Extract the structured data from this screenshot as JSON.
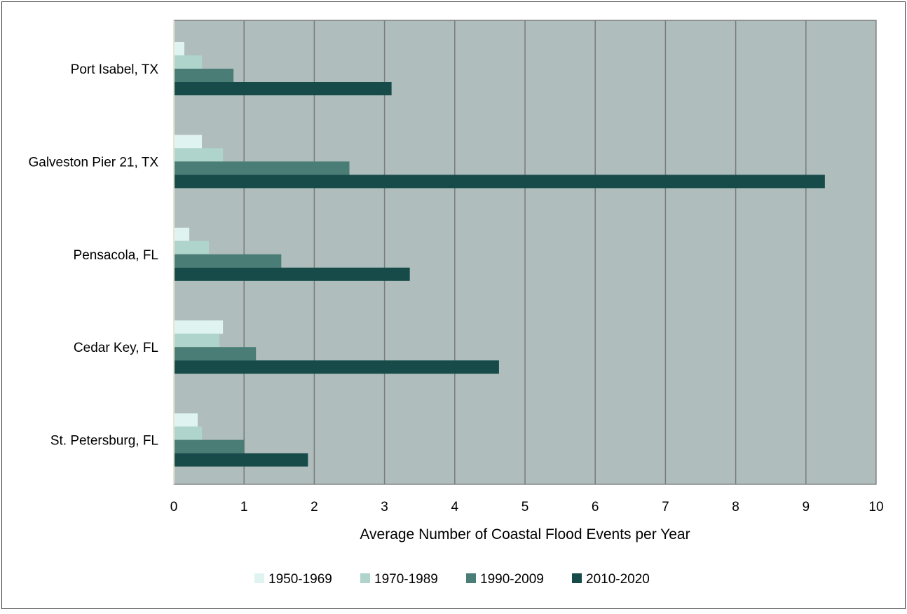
{
  "chart_data": {
    "type": "bar",
    "orientation": "horizontal",
    "categories": [
      "Port Isabel, TX",
      "Galveston Pier 21, TX",
      "Pensacola, FL",
      "Cedar Key, FL",
      "St. Petersburg, FL"
    ],
    "series": [
      {
        "name": "1950-1969",
        "color": "#dff3f0",
        "values": [
          0.15,
          0.4,
          0.22,
          0.7,
          0.34
        ]
      },
      {
        "name": "1970-1989",
        "color": "#aed4cc",
        "values": [
          0.4,
          0.7,
          0.5,
          0.65,
          0.4
        ]
      },
      {
        "name": "1990-2009",
        "color": "#4a7d76",
        "values": [
          0.85,
          2.5,
          1.53,
          1.17,
          1.0
        ]
      },
      {
        "name": "2010-2020",
        "color": "#164b49",
        "values": [
          3.1,
          9.27,
          3.36,
          4.63,
          1.91
        ]
      }
    ],
    "xlabel": "Average Number of Coastal Flood Events per Year",
    "ylabel": "",
    "title": "",
    "xlim": [
      0,
      10
    ],
    "xticks": [
      "0",
      "1",
      "2",
      "3",
      "4",
      "5",
      "6",
      "7",
      "8",
      "9",
      "10"
    ],
    "grid": "vertical",
    "plot_background": "#b0bdbd",
    "legend_position": "bottom"
  }
}
